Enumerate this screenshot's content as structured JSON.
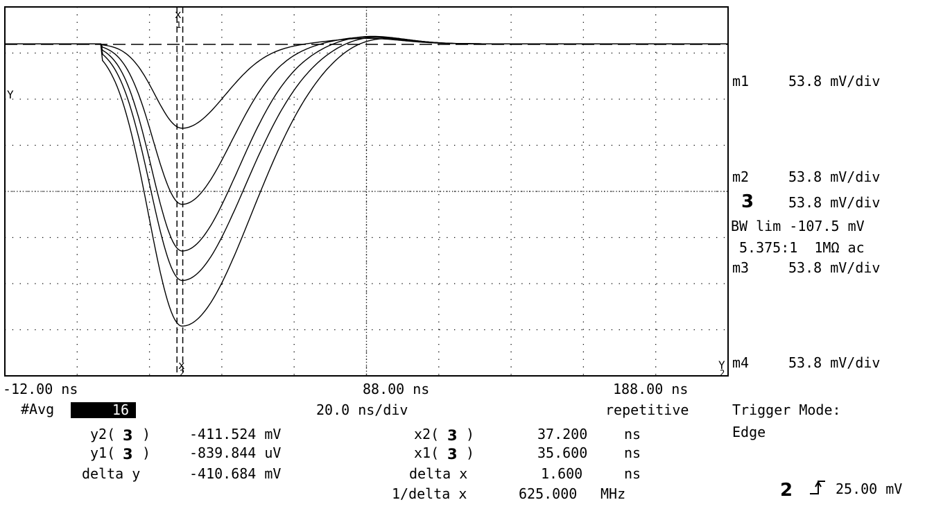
{
  "right_panel": {
    "m1": {
      "label": "m1",
      "scale": "53.8 mV/div"
    },
    "m2": {
      "label": "m2",
      "scale": "53.8 mV/div"
    },
    "ch3": {
      "label": "3",
      "scale": "53.8 mV/div",
      "bw": "BW lim -107.5 mV",
      "probe": "5.375:1  1MΩ ac"
    },
    "m3": {
      "label": "m3",
      "scale": "53.8 mV/div"
    },
    "m4": {
      "label": "m4",
      "scale": "53.8 mV/div"
    }
  },
  "time_axis": {
    "left": "-12.00 ns",
    "center": "88.00 ns",
    "right": "188.00 ns"
  },
  "acq": {
    "avg_label": "#Avg",
    "avg_value": "16",
    "timebase": "20.0 ns/div",
    "mode": "repetitive"
  },
  "trigger": {
    "title": "Trigger Mode:",
    "mode": "Edge",
    "channel": "2",
    "level": "25.00 mV"
  },
  "markers": {
    "y2_prefix": "y2(",
    "y2_ch": "3",
    "y2_suffix": ")",
    "y2_value": "-411.524 mV",
    "y1_prefix": "y1(",
    "y1_ch": "3",
    "y1_suffix": ")",
    "y1_value": "-839.844 uV",
    "delta_y_label": "delta y",
    "delta_y_value": "-410.684 mV",
    "x2_prefix": "x2(",
    "x2_ch": "3",
    "x2_suffix": ")",
    "x2_value": "37.200",
    "x2_unit": "ns",
    "x1_prefix": "x1(",
    "x1_ch": "3",
    "x1_suffix": ")",
    "x1_value": "35.600",
    "x1_unit": "ns",
    "delta_x_label": "delta x",
    "delta_x_value": "1.600",
    "delta_x_unit": "ns",
    "inv_delta_x_label": "1/delta x",
    "inv_delta_x_value": "625.000",
    "inv_delta_x_unit": "MHz"
  },
  "cursor_labels": {
    "x1": "x",
    "x1_sub": "1",
    "x2": "x",
    "x2_sub": "2",
    "y1": "Y",
    "y2": "Y",
    "y2_sub": "2"
  },
  "chart_data": {
    "type": "line",
    "xlabel": "",
    "ylabel": "",
    "xlim": [
      -12,
      188
    ],
    "ylim": [
      -0.484,
      0.0538
    ],
    "x_unit": "ns",
    "y_unit": "V",
    "grid": true,
    "series": [
      {
        "baseline": 0,
        "trough_time_ns": 37,
        "trough_value": -0.123,
        "overshoot": 0.008
      },
      {
        "baseline": 0,
        "trough_time_ns": 37,
        "trough_value": -0.234,
        "overshoot": 0.01
      },
      {
        "baseline": 0,
        "trough_time_ns": 37,
        "trough_value": -0.302,
        "overshoot": 0.012
      },
      {
        "baseline": 0,
        "trough_time_ns": 37,
        "trough_value": -0.345,
        "overshoot": 0.013
      },
      {
        "baseline": 0,
        "trough_time_ns": 37,
        "trough_value": -0.4115,
        "overshoot": 0.015
      }
    ]
  }
}
